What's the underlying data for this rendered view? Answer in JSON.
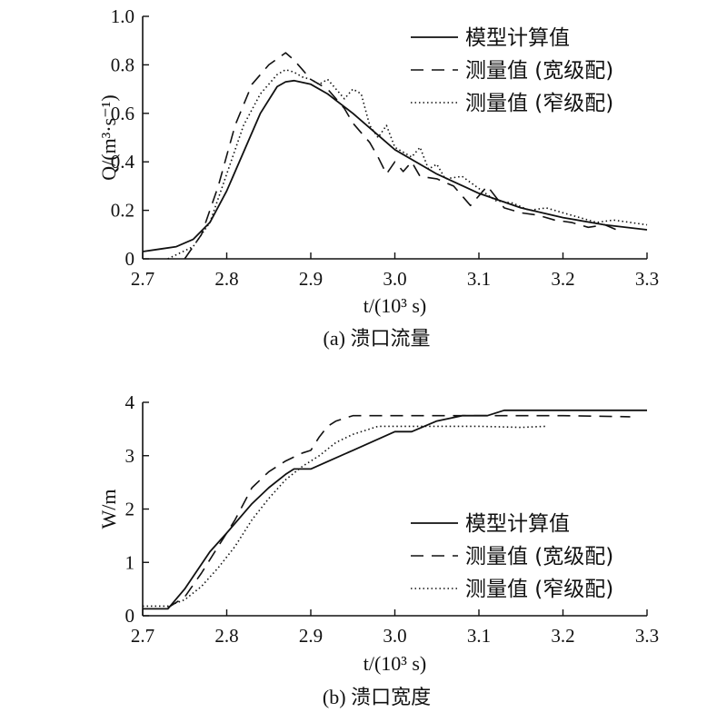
{
  "chart_data": [
    {
      "type": "line",
      "caption": "(a) 溃口流量",
      "ylabel": "Q/(m³·s⁻¹)",
      "xlabel": "t/(10³ s)",
      "xlim": [
        2.7,
        3.3
      ],
      "ylim": [
        0,
        1.0
      ],
      "xticks": [
        "2.7",
        "2.8",
        "2.9",
        "3.0",
        "3.1",
        "3.2",
        "3.3"
      ],
      "yticks": [
        "0",
        "0.2",
        "0.4",
        "0.6",
        "0.8",
        "1.0"
      ],
      "legend_position": "top-right",
      "series": [
        {
          "name": "模型计算值",
          "style": "solid",
          "x": [
            2.7,
            2.72,
            2.74,
            2.76,
            2.78,
            2.8,
            2.82,
            2.84,
            2.86,
            2.87,
            2.88,
            2.9,
            2.92,
            2.95,
            3.0,
            3.05,
            3.1,
            3.15,
            3.2,
            3.25,
            3.3
          ],
          "y": [
            0.03,
            0.04,
            0.05,
            0.08,
            0.15,
            0.28,
            0.44,
            0.6,
            0.71,
            0.73,
            0.735,
            0.72,
            0.68,
            0.6,
            0.45,
            0.35,
            0.27,
            0.21,
            0.17,
            0.14,
            0.12
          ]
        },
        {
          "name": "测量值 (宽级配)",
          "style": "dashed",
          "x": [
            2.75,
            2.77,
            2.79,
            2.81,
            2.83,
            2.85,
            2.87,
            2.88,
            2.89,
            2.9,
            2.91,
            2.92,
            2.93,
            2.94,
            2.95,
            2.96,
            2.97,
            2.98,
            2.99,
            3.0,
            3.01,
            3.02,
            3.03,
            3.05,
            3.07,
            3.09,
            3.11,
            3.13,
            3.15,
            3.17,
            3.19,
            3.21,
            3.23,
            3.25,
            3.27
          ],
          "y": [
            0.0,
            0.1,
            0.3,
            0.55,
            0.72,
            0.8,
            0.85,
            0.82,
            0.78,
            0.74,
            0.72,
            0.7,
            0.66,
            0.62,
            0.56,
            0.52,
            0.48,
            0.42,
            0.35,
            0.4,
            0.36,
            0.4,
            0.34,
            0.33,
            0.3,
            0.22,
            0.3,
            0.21,
            0.19,
            0.18,
            0.16,
            0.15,
            0.13,
            0.14,
            0.11
          ]
        },
        {
          "name": "测量值 (窄级配)",
          "style": "dotted",
          "x": [
            2.73,
            2.76,
            2.78,
            2.8,
            2.82,
            2.84,
            2.86,
            2.87,
            2.88,
            2.89,
            2.9,
            2.91,
            2.92,
            2.93,
            2.94,
            2.95,
            2.96,
            2.97,
            2.98,
            2.99,
            3.0,
            3.01,
            3.02,
            3.03,
            3.04,
            3.05,
            3.06,
            3.08,
            3.1,
            3.12,
            3.14,
            3.16,
            3.18,
            3.2,
            3.22,
            3.24,
            3.26,
            3.28,
            3.3
          ],
          "y": [
            0.0,
            0.05,
            0.15,
            0.35,
            0.55,
            0.68,
            0.76,
            0.78,
            0.77,
            0.75,
            0.74,
            0.72,
            0.74,
            0.7,
            0.66,
            0.7,
            0.68,
            0.55,
            0.5,
            0.55,
            0.46,
            0.44,
            0.42,
            0.46,
            0.37,
            0.39,
            0.33,
            0.34,
            0.29,
            0.24,
            0.23,
            0.2,
            0.21,
            0.19,
            0.17,
            0.15,
            0.16,
            0.15,
            0.14
          ]
        }
      ]
    },
    {
      "type": "line",
      "caption": "(b) 溃口宽度",
      "ylabel": "W/m",
      "xlabel": "t/(10³ s)",
      "xlim": [
        2.7,
        3.3
      ],
      "ylim": [
        0,
        4
      ],
      "xticks": [
        "2.7",
        "2.8",
        "2.9",
        "3.0",
        "3.1",
        "3.2",
        "3.3"
      ],
      "yticks": [
        "0",
        "1",
        "2",
        "3",
        "4"
      ],
      "legend_position": "bottom-right",
      "series": [
        {
          "name": "模型计算值",
          "style": "solid",
          "x": [
            2.7,
            2.73,
            2.75,
            2.78,
            2.8,
            2.83,
            2.85,
            2.87,
            2.88,
            2.9,
            2.95,
            3.0,
            3.02,
            3.05,
            3.08,
            3.11,
            3.13,
            3.3
          ],
          "y": [
            0.13,
            0.13,
            0.5,
            1.2,
            1.55,
            2.1,
            2.4,
            2.65,
            2.75,
            2.75,
            3.1,
            3.45,
            3.45,
            3.65,
            3.75,
            3.75,
            3.85,
            3.85
          ]
        },
        {
          "name": "测量值 (宽级配)",
          "style": "dashed",
          "x": [
            2.73,
            2.75,
            2.77,
            2.79,
            2.81,
            2.83,
            2.85,
            2.87,
            2.89,
            2.9,
            2.91,
            2.92,
            2.93,
            2.95,
            3.0,
            3.1,
            3.2,
            3.28
          ],
          "y": [
            0.15,
            0.35,
            0.8,
            1.3,
            1.8,
            2.4,
            2.7,
            2.9,
            3.05,
            3.1,
            3.35,
            3.55,
            3.65,
            3.75,
            3.75,
            3.75,
            3.75,
            3.73
          ]
        },
        {
          "name": "测量值 (窄级配)",
          "style": "dotted",
          "x": [
            2.7,
            2.73,
            2.75,
            2.77,
            2.79,
            2.81,
            2.83,
            2.85,
            2.87,
            2.89,
            2.91,
            2.93,
            2.95,
            2.98,
            3.0,
            3.05,
            3.1,
            3.15,
            3.18
          ],
          "y": [
            0.18,
            0.18,
            0.3,
            0.55,
            0.9,
            1.3,
            1.8,
            2.2,
            2.55,
            2.8,
            3.0,
            3.25,
            3.4,
            3.55,
            3.55,
            3.55,
            3.55,
            3.53,
            3.55
          ]
        }
      ]
    }
  ]
}
